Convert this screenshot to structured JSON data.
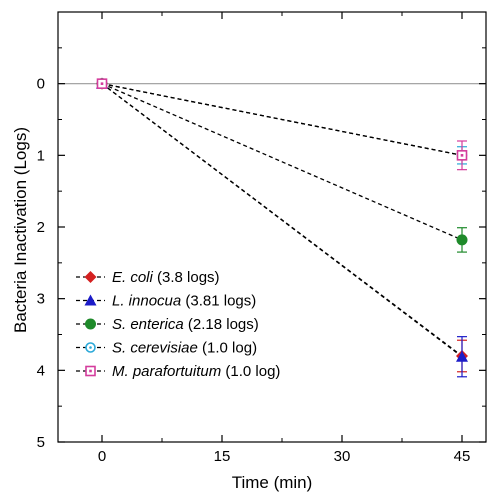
{
  "chart_data": {
    "type": "scatter",
    "xlabel": "Time (min)",
    "ylabel": "Bacteria  Inactivation (Logs)",
    "xlim": [
      -5.5,
      48
    ],
    "ylim": [
      5,
      -1.0
    ],
    "y_inverted": true,
    "xticks": [
      0,
      15,
      30,
      45
    ],
    "yticks": [
      0,
      1,
      2,
      3,
      4,
      5
    ],
    "zero_reference_line": true,
    "grid": false,
    "legend_position": "bottom-left",
    "series": [
      {
        "name_italic": "E. coli",
        "name_rest": " (3.8 logs)",
        "color": "#d42020",
        "marker": "diamond",
        "x": [
          0,
          45
        ],
        "y": [
          0,
          3.8
        ],
        "err": [
          0,
          0.22
        ]
      },
      {
        "name_italic": "L. innocua",
        "name_rest": " (3.81 logs)",
        "color": "#1c1cc8",
        "marker": "triangle",
        "x": [
          0,
          45
        ],
        "y": [
          0,
          3.81
        ],
        "err": [
          0,
          0.28
        ]
      },
      {
        "name_italic": "S. enterica",
        "name_rest": " (2.18 logs)",
        "color": "#1e8a2a",
        "marker": "circle",
        "x": [
          0,
          45
        ],
        "y": [
          0,
          2.18
        ],
        "err": [
          0,
          0.17
        ]
      },
      {
        "name_italic": "S. cerevisiae",
        "name_rest": " (1.0 log)",
        "color": "#2aa8d8",
        "marker": "circle-dot",
        "x": [
          0,
          45
        ],
        "y": [
          0,
          1.0
        ],
        "err": [
          0,
          0.12
        ]
      },
      {
        "name_italic": "M. parafortuitum",
        "name_rest": " (1.0 log)",
        "color": "#d43c9c",
        "marker": "square-dot",
        "x": [
          0,
          45
        ],
        "y": [
          0,
          1.0
        ],
        "err": [
          0,
          0.2
        ]
      }
    ]
  }
}
